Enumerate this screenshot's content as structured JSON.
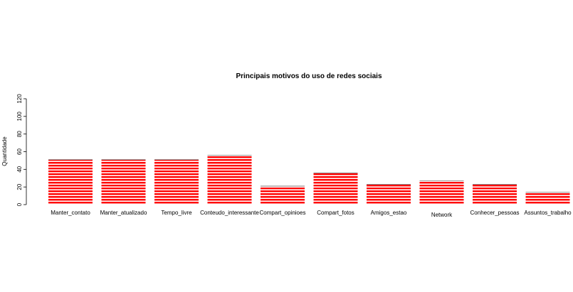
{
  "chart_data": {
    "type": "bar",
    "title": "Principais motivos do uso de redes sociais",
    "xlabel": "",
    "ylabel": "Quantidade",
    "ylim": [
      0,
      120
    ],
    "yticks": [
      0,
      20,
      40,
      60,
      80,
      100,
      120
    ],
    "grid": false,
    "bar_color": "#ff0000",
    "bar_pattern": "horizontal stripes",
    "categories": [
      "Manter_contato",
      "Manter_atualizado",
      "Tempo_livre",
      "Conteudo_interessante",
      "Compart_opinioes",
      "Compart_fotos",
      "Amigos_estao",
      "Network",
      "Conhecer_pessoas",
      "Assuntos_trabalho"
    ],
    "values": [
      51,
      51,
      51,
      56,
      21,
      36,
      23,
      27,
      23,
      14
    ]
  }
}
